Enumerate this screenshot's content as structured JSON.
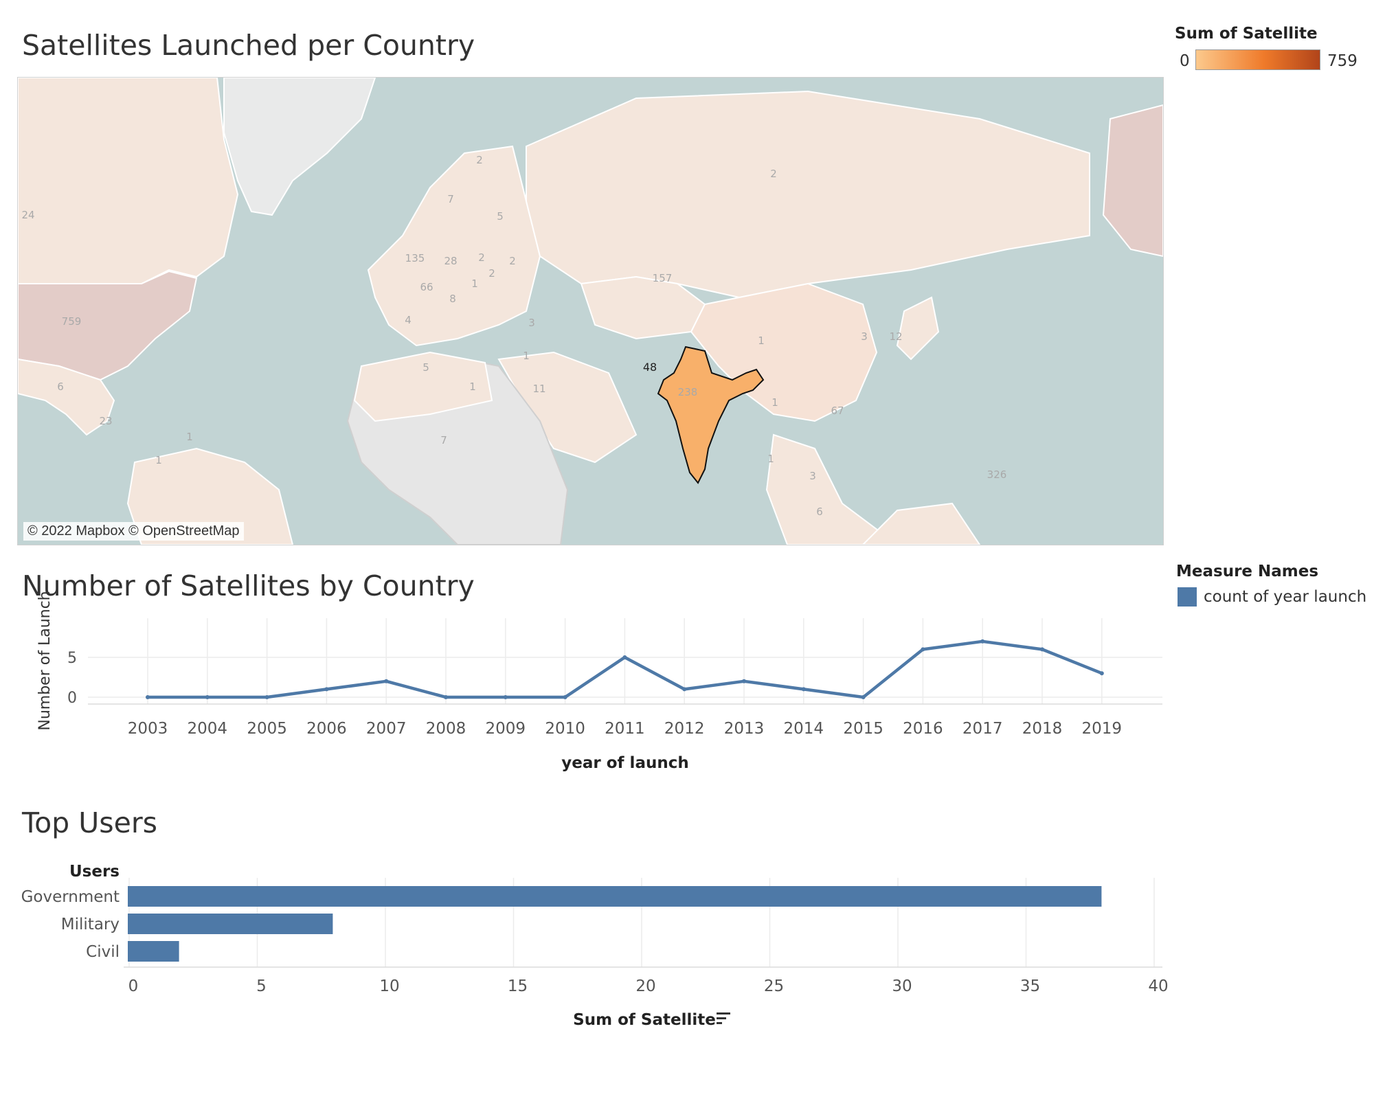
{
  "map": {
    "title": "Satellites Launched per Country",
    "legend_title": "Sum of Satellite",
    "legend_min": "0",
    "legend_max": "759",
    "attribution": "© 2022 Mapbox © OpenStreetMap",
    "colors": {
      "water": "#c2d4d4",
      "highlight": "#f8b06a",
      "scale_low": "#fcc98c",
      "scale_mid": "#ef7a2a",
      "scale_high": "#b1441a"
    },
    "labels": [
      "24",
      "759",
      "6",
      "23",
      "1",
      "1",
      "2",
      "7",
      "5",
      "135",
      "28",
      "2",
      "2",
      "2",
      "66",
      "1",
      "8",
      "4",
      "5",
      "3",
      "1",
      "1",
      "11",
      "7",
      "2",
      "157",
      "1",
      "238",
      "48",
      "3",
      "12",
      "67",
      "1",
      "1",
      "3",
      "6",
      "326"
    ]
  },
  "line_section": {
    "title": "Number of Satellites by Country",
    "legend_title": "Measure Names",
    "legend_item": "count of year launch",
    "color": "#4e79a7"
  },
  "bar_section": {
    "title": "Top Users",
    "users_header": "Users",
    "color": "#4e79a7"
  },
  "chart_data": [
    {
      "type": "line",
      "xlabel": "year of launch",
      "ylabel": "Number of Launch",
      "x": [
        "2003",
        "2004",
        "2005",
        "2006",
        "2007",
        "2008",
        "2009",
        "2010",
        "2011",
        "2012",
        "2013",
        "2014",
        "2015",
        "2016",
        "2017",
        "2018",
        "2019"
      ],
      "series": [
        {
          "name": "count of year launch",
          "values": [
            0,
            0,
            0,
            1,
            2,
            0,
            0,
            0,
            5,
            1,
            2,
            1,
            0,
            6,
            7,
            6,
            3
          ]
        }
      ],
      "yticks": [
        "0",
        "5"
      ],
      "ylim": [
        0,
        8
      ]
    },
    {
      "type": "bar",
      "orientation": "horizontal",
      "categories": [
        "Government",
        "Military",
        "Civil"
      ],
      "values": [
        38,
        8,
        2
      ],
      "xlabel": "Sum of Satellite",
      "xticks": [
        "0",
        "5",
        "10",
        "15",
        "20",
        "25",
        "30",
        "35",
        "40"
      ],
      "xlim": [
        0,
        40
      ]
    }
  ]
}
